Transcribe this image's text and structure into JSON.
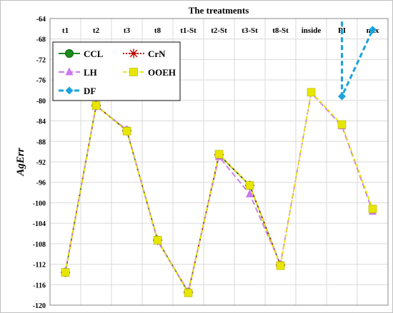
{
  "chart_data": {
    "type": "line",
    "title": "The treatments",
    "xlabel": "",
    "ylabel": "AgErr",
    "categories": [
      "t1",
      "t2",
      "t3",
      "t8",
      "t1-St",
      "t2-St",
      "t3-St",
      "t8-St",
      "inside",
      "PI",
      "mix"
    ],
    "ylim": [
      -120,
      -64
    ],
    "yticks": [
      -64,
      -68,
      -72,
      -76,
      -80,
      -84,
      -88,
      -92,
      -96,
      -100,
      -104,
      -108,
      -112,
      -116,
      -120
    ],
    "x_axis_position": "top",
    "grid": true,
    "legend_position": "top-left",
    "series": [
      {
        "name": "CCL",
        "color": "#1a8c1a",
        "marker": "circle",
        "dash": "",
        "values": [
          -113.6,
          -81.0,
          -85.9,
          -107.3,
          -117.5,
          -90.6,
          -96.6,
          -112.2,
          null,
          null,
          null
        ]
      },
      {
        "name": "CrN",
        "color": "#c00000",
        "marker": "asterisk",
        "dash": "2,2",
        "values": [
          -113.6,
          -81.0,
          -85.9,
          -107.3,
          -117.5,
          -90.6,
          -96.6,
          -112.2,
          null,
          null,
          null
        ]
      },
      {
        "name": "LH",
        "color": "#cc77ee",
        "marker": "triangle",
        "dash": "8,4",
        "values": [
          -113.3,
          -81.1,
          -85.7,
          -107.5,
          -117.3,
          -91.0,
          -98.3,
          -112.0,
          -78.5,
          -85.0,
          -101.7
        ]
      },
      {
        "name": "OOEH",
        "color": "#e6e600",
        "marker": "square",
        "dash": "5,3",
        "values": [
          -113.6,
          -81.0,
          -86.0,
          -107.3,
          -117.6,
          -90.5,
          -96.6,
          -112.3,
          -78.4,
          -84.7,
          -101.2
        ]
      },
      {
        "name": "DF",
        "color": "#1aa3dd",
        "marker": "diamond",
        "dash": "7,4",
        "values": [
          null,
          null,
          null,
          null,
          null,
          null,
          null,
          null,
          null,
          -79.2,
          -66.2
        ]
      }
    ]
  },
  "df_extra": {
    "from_value": -60,
    "to_category_index": 9
  },
  "legend_rows": [
    [
      "CCL",
      "CrN"
    ],
    [
      "LH",
      "OOEH"
    ],
    [
      "DF"
    ]
  ]
}
